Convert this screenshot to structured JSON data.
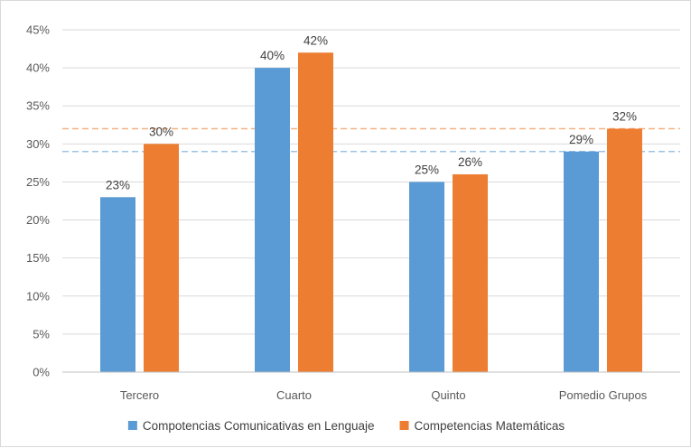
{
  "chart_data": {
    "type": "bar",
    "categories": [
      "Tercero",
      "Cuarto",
      "Quinto",
      "Pomedio Grupos"
    ],
    "series": [
      {
        "name": "Compotencias Comunicativas en Lenguaje",
        "values": [
          23,
          40,
          25,
          29
        ],
        "labels": [
          "23%",
          "40%",
          "25%",
          "29%"
        ],
        "color": "#5B9BD5"
      },
      {
        "name": "Competencias Matemáticas",
        "values": [
          30,
          42,
          26,
          32
        ],
        "labels": [
          "30%",
          "42%",
          "26%",
          "32%"
        ],
        "color": "#ED7D31"
      }
    ],
    "reference_lines": [
      {
        "value": 29,
        "color": "#9DC3E6",
        "style": "dashed"
      },
      {
        "value": 32,
        "color": "#F4B183",
        "style": "dashed"
      }
    ],
    "ylim": [
      0,
      45
    ],
    "yticks": [
      0,
      5,
      10,
      15,
      20,
      25,
      30,
      35,
      40,
      45
    ],
    "ytick_labels": [
      "0%",
      "5%",
      "10%",
      "15%",
      "20%",
      "25%",
      "30%",
      "35%",
      "40%",
      "45%"
    ],
    "grid": true,
    "legend_position": "bottom",
    "title": "",
    "xlabel": "",
    "ylabel": ""
  }
}
